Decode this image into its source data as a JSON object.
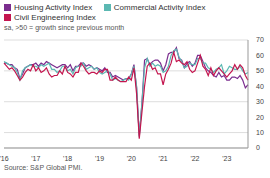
{
  "chart_data": {
    "type": "line",
    "subtitle": "sa, >50 = growth since previous month",
    "source": "Source: S&P Global PMI.",
    "legend": "top-left",
    "grid": true,
    "categories": [
      "'16",
      null,
      null,
      null,
      null,
      null,
      null,
      null,
      null,
      null,
      null,
      null,
      "'17",
      null,
      null,
      null,
      null,
      null,
      null,
      null,
      null,
      null,
      null,
      null,
      "'18",
      null,
      null,
      null,
      null,
      null,
      null,
      null,
      null,
      null,
      null,
      null,
      "'19",
      null,
      null,
      null,
      null,
      null,
      null,
      null,
      null,
      null,
      null,
      null,
      "'20",
      null,
      null,
      null,
      null,
      null,
      null,
      null,
      null,
      null,
      null,
      null,
      "'21",
      null,
      null,
      null,
      null,
      null,
      null,
      null,
      null,
      null,
      null,
      null,
      "'22",
      null,
      null,
      null,
      null,
      null,
      null,
      null,
      null,
      null,
      null,
      null,
      "'23",
      null,
      null,
      null,
      null,
      null,
      null,
      null,
      null
    ],
    "ylim": [
      0,
      70
    ],
    "yticks": [
      0,
      10,
      20,
      30,
      40,
      50,
      60,
      70
    ],
    "series": [
      {
        "name": "Housing Activity Index",
        "color": "#7b2d8e",
        "values": [
          55,
          55,
          54,
          54,
          52,
          51,
          45,
          48,
          52,
          53,
          54,
          54,
          55,
          53,
          55,
          54,
          56,
          55,
          54,
          53,
          52,
          53,
          54,
          54,
          52,
          54,
          50,
          53,
          53,
          55,
          55,
          53,
          54,
          53,
          51,
          52,
          51,
          50,
          52,
          49,
          49,
          46,
          47,
          46,
          45,
          44,
          45,
          45,
          48,
          54,
          39,
          8,
          29,
          57,
          58,
          54,
          56,
          57,
          57,
          55,
          50,
          54,
          61,
          62,
          62,
          65,
          58,
          57,
          52,
          55,
          56,
          53,
          55,
          60,
          60,
          56,
          52,
          50,
          49,
          47,
          46,
          49,
          46,
          47,
          44,
          44,
          46,
          46,
          45,
          47,
          44,
          39,
          41
        ]
      },
      {
        "name": "Commercial Activity Index",
        "color": "#5bb8b2",
        "values": [
          56,
          55,
          54,
          53,
          52,
          49,
          44,
          50,
          52,
          53,
          54,
          53,
          53,
          52,
          54,
          53,
          54,
          55,
          51,
          51,
          49,
          50,
          53,
          53,
          50,
          51,
          48,
          52,
          53,
          53,
          55,
          51,
          52,
          53,
          51,
          52,
          49,
          48,
          49,
          50,
          48,
          44,
          45,
          44,
          43,
          44,
          45,
          44,
          48,
          53,
          40,
          7,
          29,
          52,
          58,
          53,
          55,
          53,
          54,
          53,
          49,
          50,
          53,
          60,
          63,
          64,
          59,
          56,
          52,
          53,
          55,
          54,
          54,
          58,
          58,
          55,
          55,
          52,
          51,
          49,
          51,
          52,
          54,
          48,
          50,
          53,
          52,
          51,
          51,
          53,
          50,
          48,
          49
        ]
      },
      {
        "name": "Civil Engineering Index",
        "color": "#c4164f",
        "values": [
          55,
          53,
          51,
          52,
          50,
          47,
          44,
          46,
          49,
          51,
          50,
          54,
          50,
          52,
          49,
          50,
          52,
          48,
          46,
          47,
          47,
          50,
          48,
          53,
          49,
          48,
          46,
          49,
          49,
          55,
          53,
          50,
          48,
          49,
          49,
          48,
          50,
          49,
          51,
          51,
          44,
          44,
          46,
          44,
          43,
          43,
          43,
          46,
          44,
          52,
          35,
          6,
          23,
          40,
          53,
          55,
          51,
          52,
          48,
          48,
          41,
          48,
          51,
          55,
          62,
          56,
          57,
          55,
          54,
          56,
          51,
          49,
          50,
          55,
          60,
          53,
          51,
          47,
          52,
          47,
          50,
          52,
          50,
          48,
          46,
          48,
          50,
          54,
          51,
          54,
          52,
          47,
          44
        ]
      }
    ]
  }
}
